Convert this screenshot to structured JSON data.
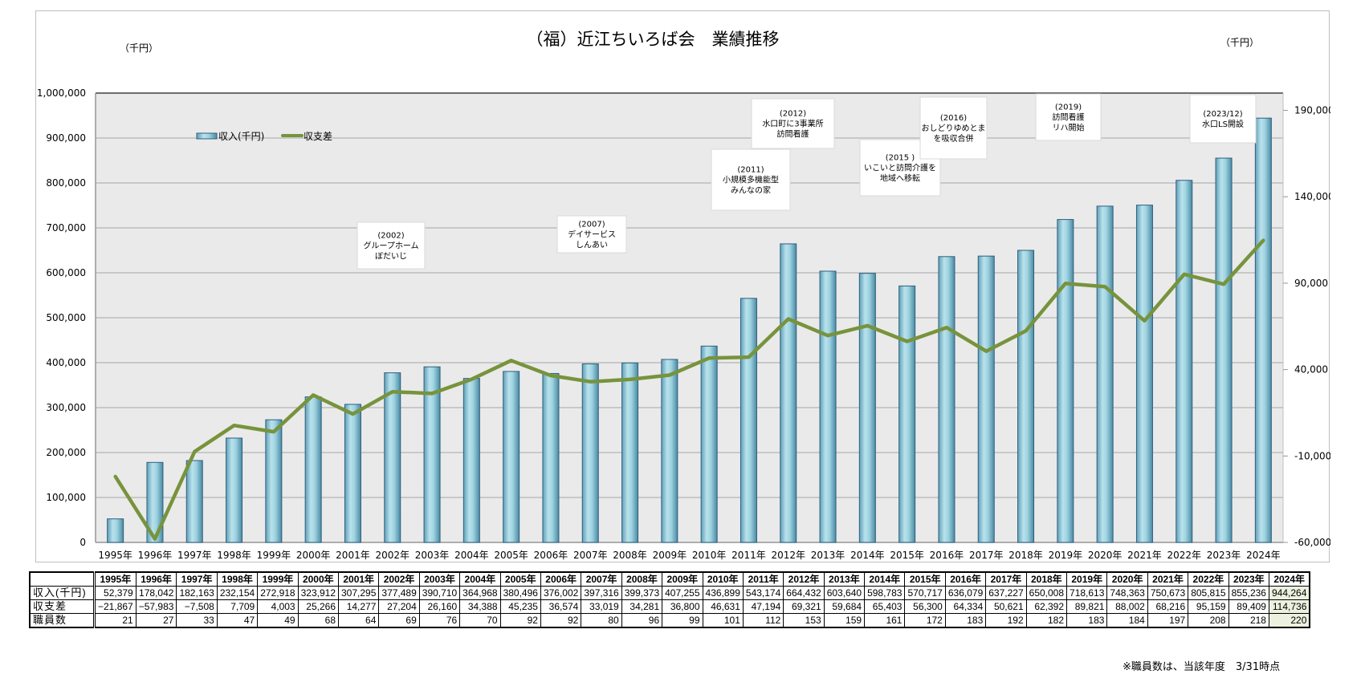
{
  "chart_data": {
    "type": "bar+line",
    "title": "（福）近江ちいろば会　業績推移",
    "left_unit": "（千円）",
    "right_unit": "（千円）",
    "categories": [
      "1995年",
      "1996年",
      "1997年",
      "1998年",
      "1999年",
      "2000年",
      "2001年",
      "2002年",
      "2003年",
      "2004年",
      "2005年",
      "2006年",
      "2007年",
      "2008年",
      "2009年",
      "2010年",
      "2011年",
      "2012年",
      "2013年",
      "2014年",
      "2015年",
      "2016年",
      "2017年",
      "2018年",
      "2019年",
      "2020年",
      "2021年",
      "2022年",
      "2023年",
      "2024年"
    ],
    "series": [
      {
        "name": "収入(千円)",
        "type": "bar",
        "axis": "left",
        "color": "#5ba3bd",
        "values": [
          52379,
          178042,
          182163,
          232154,
          272918,
          323912,
          307295,
          377489,
          390710,
          364968,
          380496,
          376002,
          397316,
          399373,
          407255,
          436899,
          543174,
          664432,
          603640,
          598783,
          570717,
          636079,
          637227,
          650008,
          718613,
          748363,
          750673,
          805815,
          855236,
          944264
        ]
      },
      {
        "name": "収支差",
        "type": "line",
        "axis": "right",
        "color": "#77933c",
        "values": [
          -21867,
          -57983,
          -7508,
          7709,
          4003,
          25266,
          14277,
          27204,
          26160,
          34388,
          45235,
          36574,
          33019,
          34281,
          36800,
          46631,
          47194,
          69321,
          59684,
          65403,
          56300,
          64334,
          50621,
          62392,
          89821,
          88002,
          68216,
          95159,
          89409,
          114736
        ]
      }
    ],
    "left_axis": {
      "min": 0,
      "max": 1000000,
      "step": 100000,
      "tick_labels": [
        "0",
        "100,000",
        "200,000",
        "300,000",
        "400,000",
        "500,000",
        "600,000",
        "700,000",
        "800,000",
        "900,000",
        "1,000,000"
      ]
    },
    "right_axis": {
      "min": -60000,
      "max": 200000,
      "ticks": [
        -60000,
        -10000,
        40000,
        90000,
        140000,
        190000
      ],
      "tick_labels": [
        "-60,000",
        "-10,000",
        "40,000",
        "90,000",
        "140,000",
        "190,000"
      ]
    },
    "legend": {
      "placement": "top-left",
      "entries": [
        "収入(千円)",
        "収支差"
      ]
    },
    "grid": true,
    "annotations": [
      {
        "year": "(2002)",
        "lines": [
          "グループホーム",
          "ぼだいじ"
        ]
      },
      {
        "year": "(2007)",
        "lines": [
          "デイサービス",
          "しんあい"
        ]
      },
      {
        "year": "(2011)",
        "lines": [
          "小規模多機能型",
          "みんなの家"
        ]
      },
      {
        "year": "(2012)",
        "lines": [
          "水口町に3事業所",
          "訪問看護"
        ]
      },
      {
        "year": "(2015 )",
        "lines": [
          "いこいと訪問介護を",
          "地域へ移転"
        ]
      },
      {
        "year": "(2016)",
        "lines": [
          "おしどりゆめとま",
          "を吸収合併"
        ]
      },
      {
        "year": "(2019)",
        "lines": [
          "訪問看護",
          "リハ開始"
        ]
      },
      {
        "year": "(2023/12)",
        "lines": [
          "水口LS開設"
        ]
      }
    ]
  },
  "table": {
    "header": [
      "1995年",
      "1996年",
      "1997年",
      "1998年",
      "1999年",
      "2000年",
      "2001年",
      "2002年",
      "2003年",
      "2004年",
      "2005年",
      "2006年",
      "2007年",
      "2008年",
      "2009年",
      "2010年",
      "2011年",
      "2012年",
      "2013年",
      "2014年",
      "2015年",
      "2016年",
      "2017年",
      "2018年",
      "2019年",
      "2020年",
      "2021年",
      "2022年",
      "2023年",
      "2024年"
    ],
    "rows": [
      {
        "label": "収入(千円)",
        "cells": [
          "52,379",
          "178,042",
          "182,163",
          "232,154",
          "272,918",
          "323,912",
          "307,295",
          "377,489",
          "390,710",
          "364,968",
          "380,496",
          "376,002",
          "397,316",
          "399,373",
          "407,255",
          "436,899",
          "543,174",
          "664,432",
          "603,640",
          "598,783",
          "570,717",
          "636,079",
          "637,227",
          "650,008",
          "718,613",
          "748,363",
          "750,673",
          "805,815",
          "855,236",
          "944,264"
        ]
      },
      {
        "label": "収支差",
        "cells": [
          "−21,867",
          "−57,983",
          "−7,508",
          "7,709",
          "4,003",
          "25,266",
          "14,277",
          "27,204",
          "26,160",
          "34,388",
          "45,235",
          "36,574",
          "33,019",
          "34,281",
          "36,800",
          "46,631",
          "47,194",
          "69,321",
          "59,684",
          "65,403",
          "56,300",
          "64,334",
          "50,621",
          "62,392",
          "89,821",
          "88,002",
          "68,216",
          "95,159",
          "89,409",
          "114,736"
        ]
      },
      {
        "label": "職員数",
        "cells": [
          "21",
          "27",
          "33",
          "47",
          "49",
          "68",
          "64",
          "69",
          "76",
          "70",
          "92",
          "92",
          "80",
          "96",
          "99",
          "101",
          "112",
          "153",
          "159",
          "161",
          "172",
          "183",
          "192",
          "182",
          "183",
          "184",
          "197",
          "208",
          "218",
          "220"
        ]
      }
    ],
    "highlight_color": "#ebf1de"
  },
  "footnote": "※職員数は、当該年度　3/31時点"
}
